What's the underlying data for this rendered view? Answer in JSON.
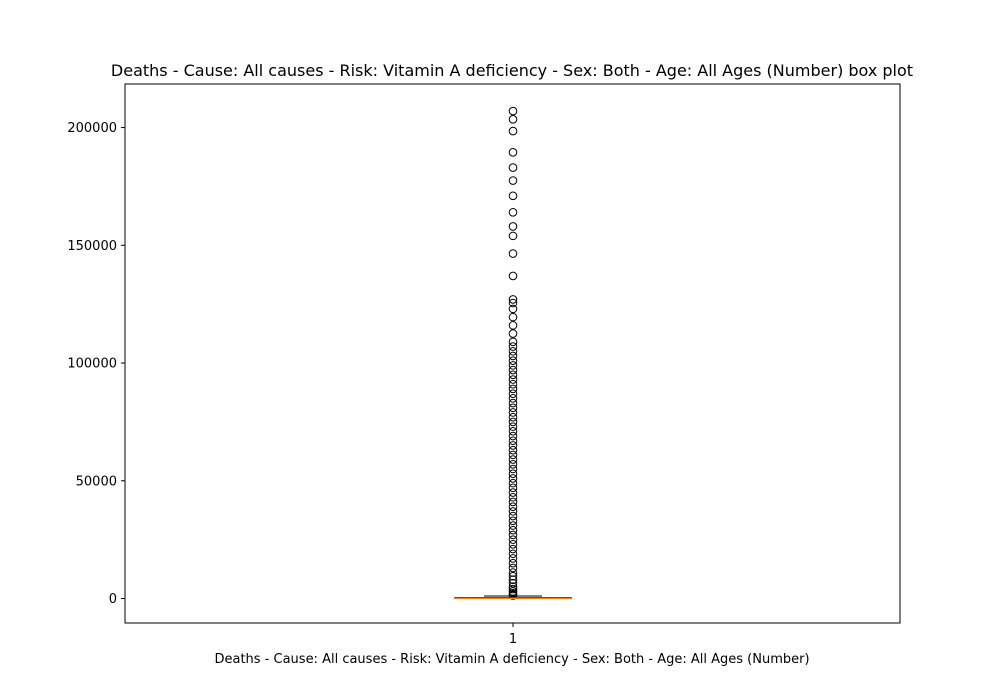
{
  "chart_data": {
    "type": "box",
    "title": "Deaths - Cause: All causes - Risk: Vitamin A deficiency - Sex: Both - Age: All Ages (Number) box plot",
    "xlabel": "Deaths - Cause: All causes - Risk: Vitamin A deficiency - Sex: Both - Age: All Ages (Number)",
    "ylabel": "",
    "ylim": [
      -10400,
      218500
    ],
    "y_ticks": [
      0,
      50000,
      100000,
      150000,
      200000
    ],
    "y_tick_labels": [
      "0",
      "50000",
      "100000",
      "150000",
      "200000"
    ],
    "categories": [
      "1"
    ],
    "box": {
      "whisker_low": 0,
      "q1": 8,
      "median": 90,
      "q3": 420,
      "whisker_high": 1050
    },
    "outliers": [
      207000,
      203500,
      198500,
      189500,
      183000,
      177500,
      171000,
      164000,
      158000,
      154000,
      146500,
      137000,
      127000,
      125500,
      123000,
      119500,
      116000,
      112500,
      109000,
      107000,
      105000,
      103000,
      101000,
      99000,
      97000,
      95000,
      93000,
      91000,
      89000,
      87000,
      85000,
      83000,
      81000,
      79000,
      77000,
      75000,
      73000,
      71000,
      69000,
      67000,
      65000,
      63000,
      61000,
      59000,
      57000,
      55000,
      53000,
      51000,
      49000,
      47000,
      45000,
      43000,
      41000,
      39000,
      37000,
      35000,
      33000,
      31000,
      29000,
      27000,
      25000,
      23000,
      21000,
      19000,
      17000,
      15000,
      13000,
      11000,
      9500,
      8000,
      6500,
      5000,
      4000,
      3000,
      2200,
      1600,
      1300
    ],
    "colors": {
      "box": "#000000",
      "median": "#ff7f0e",
      "outlier_edge": "#000000"
    }
  }
}
